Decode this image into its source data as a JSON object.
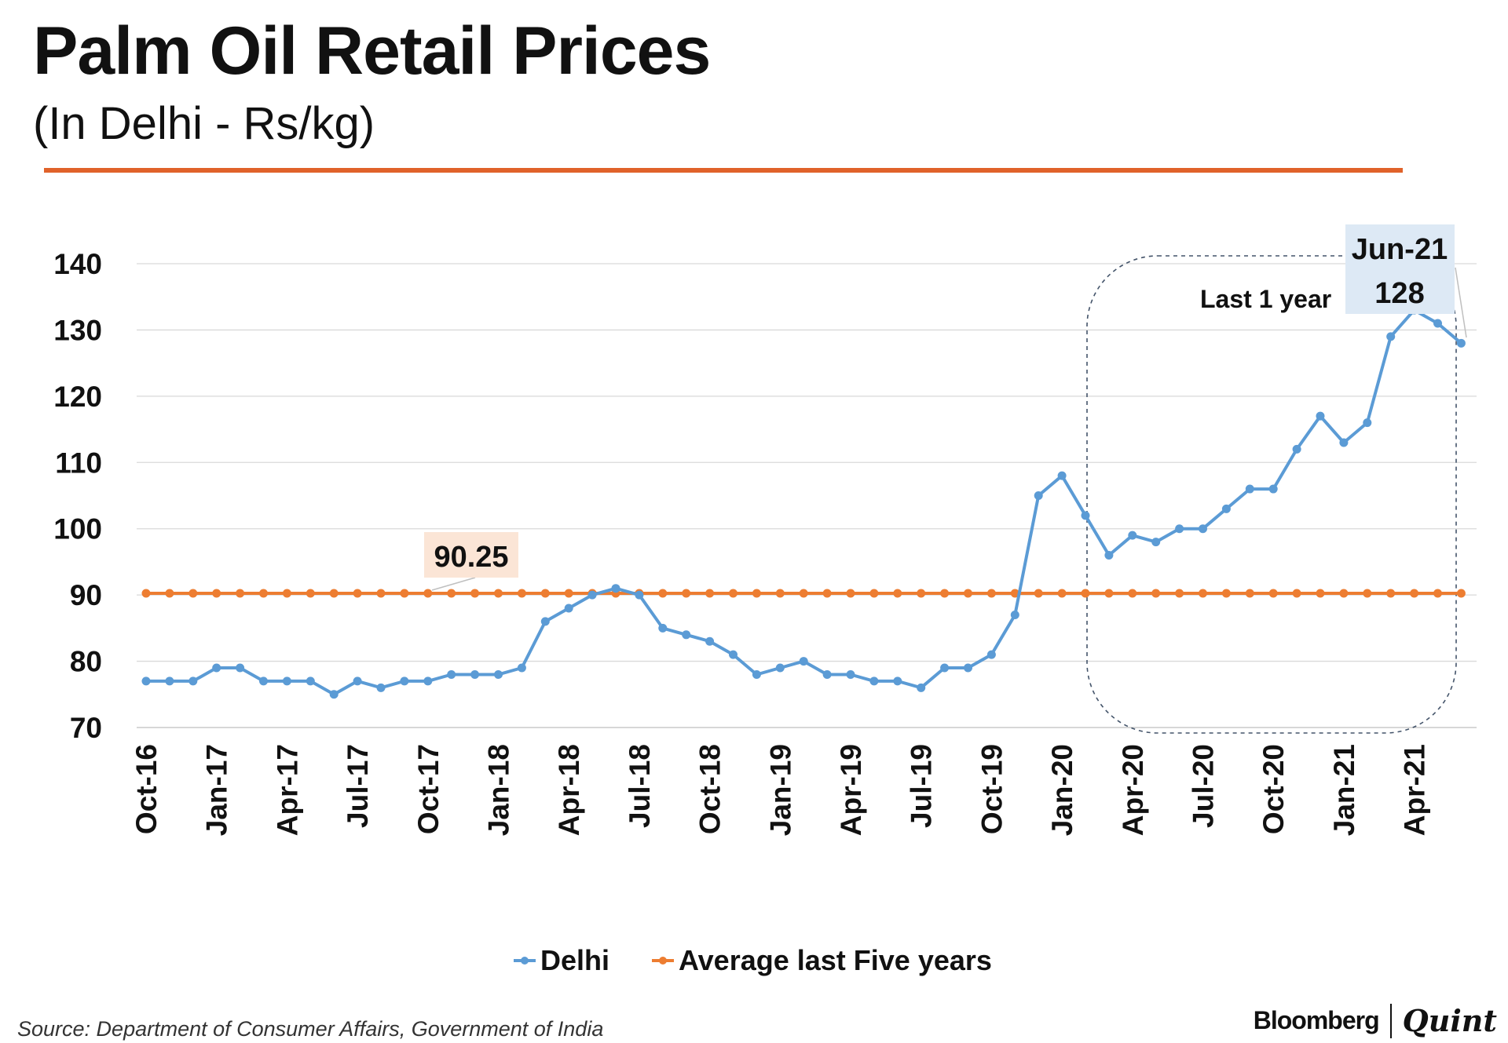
{
  "header": {
    "title": "Palm Oil Retail Prices",
    "subtitle": "(In Delhi - Rs/kg)"
  },
  "colors": {
    "delhi": "#5b9bd5",
    "average": "#ed7d31",
    "rule": "#e0622a",
    "highlight_box": "#dde9f5",
    "avg_label_box": "#fbe5d6",
    "gridline": "#d9d9d9"
  },
  "chart_data": {
    "type": "line",
    "title": "Palm Oil Retail Prices",
    "subtitle": "(In Delhi - Rs/kg)",
    "ylim": [
      70,
      140
    ],
    "yticks": [
      70,
      80,
      90,
      100,
      110,
      120,
      130,
      140
    ],
    "x_tick_labels": [
      "Oct-16",
      "Jan-17",
      "Apr-17",
      "Jul-17",
      "Oct-17",
      "Jan-18",
      "Apr-18",
      "Jul-18",
      "Oct-18",
      "Jan-19",
      "Apr-19",
      "Jul-19",
      "Oct-19",
      "Jan-20",
      "Apr-20",
      "Jul-20",
      "Oct-20",
      "Jan-21",
      "Apr-21"
    ],
    "x_tick_every": 3,
    "series": [
      {
        "name": "Delhi",
        "marker": "circle",
        "values": [
          77,
          77,
          77,
          79,
          79,
          77,
          77,
          77,
          75,
          77,
          76,
          77,
          77,
          78,
          78,
          78,
          79,
          86,
          88,
          90,
          91,
          90,
          85,
          84,
          83,
          81,
          78,
          79,
          80,
          78,
          78,
          77,
          77,
          76,
          79,
          79,
          81,
          87,
          105,
          108,
          102,
          96,
          99,
          98,
          100,
          100,
          103,
          106,
          106,
          112,
          117,
          113,
          116,
          129,
          133,
          131,
          128
        ]
      },
      {
        "name": "Average last Five years",
        "marker": "circle",
        "constant": 90.25,
        "count": 57
      }
    ],
    "legend": {
      "position": "bottom",
      "entries": [
        "Delhi",
        "Average last Five years"
      ]
    },
    "annotations": {
      "average_label": "90.25",
      "last_point_date": "Jun-21",
      "last_point_value": "128",
      "region_label": "Last 1 year"
    }
  },
  "footer": {
    "source": "Source: Department of Consumer Affairs, Government of India",
    "brand_left": "Bloomberg",
    "brand_right": "Quint"
  }
}
